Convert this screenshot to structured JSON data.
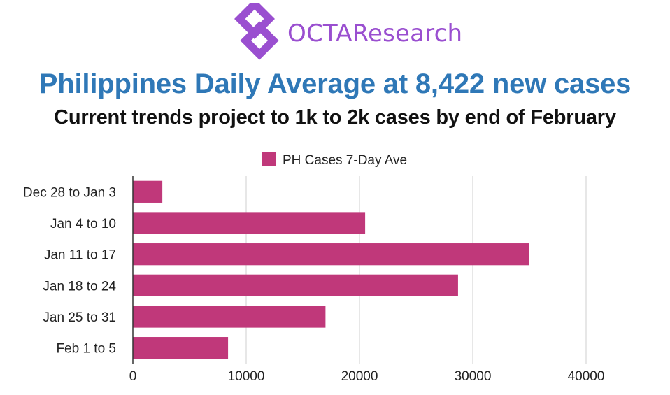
{
  "brand": {
    "name": "OCTAResearch",
    "color": "#9a4fd0"
  },
  "header": {
    "title": "Philippines Daily Average at 8,422 new cases",
    "subtitle": "Current trends project to 1k to 2k cases by end of February",
    "title_color": "#2f78b7"
  },
  "chart_data": {
    "type": "bar",
    "orientation": "horizontal",
    "categories": [
      "Dec 28 to Jan 3",
      "Jan 4 to 10",
      "Jan 11 to 17",
      "Jan 18 to 24",
      "Jan 25 to 31",
      "Feb 1 to 5"
    ],
    "series": [
      {
        "name": "PH Cases 7-Day Ave",
        "color": "#c0387a",
        "values": [
          2600,
          20500,
          35000,
          28700,
          17000,
          8400
        ]
      }
    ],
    "xlim": [
      0,
      40000
    ],
    "xticks": [
      0,
      10000,
      20000,
      30000,
      40000
    ],
    "xtick_labels": [
      "0",
      "10000",
      "20000",
      "30000",
      "40000"
    ],
    "grid": true,
    "legend_position": "top-center"
  }
}
